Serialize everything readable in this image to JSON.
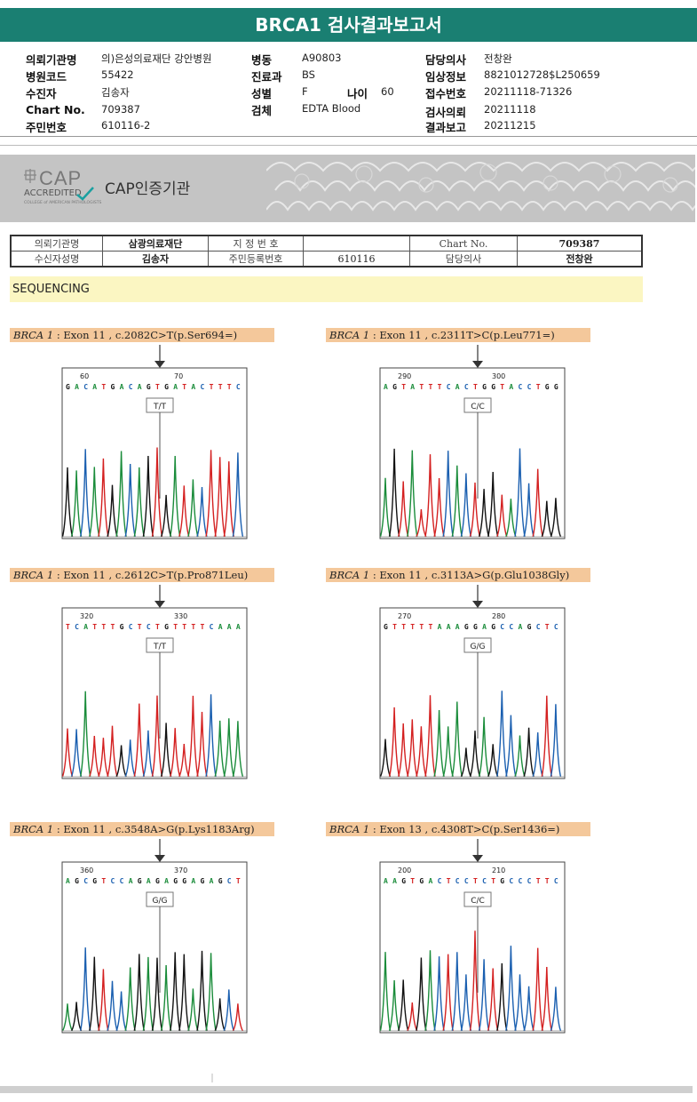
{
  "title": "BRCA1 검사결과보고서",
  "header": {
    "col1": [
      {
        "label": "의뢰기관명",
        "value": "의)은성의료재단 강안병원"
      },
      {
        "label": "병원코드",
        "value": "55422"
      },
      {
        "label": "수진자",
        "value": "김송자"
      },
      {
        "label": "Chart No.",
        "value": "709387"
      },
      {
        "label": "주민번호",
        "value": "610116-2"
      }
    ],
    "col2": [
      {
        "label": "병동",
        "value": "A90803"
      },
      {
        "label": "진료과",
        "value": "BS"
      },
      {
        "label": "성별",
        "value": "F"
      },
      {
        "label": "검체",
        "value": "EDTA Blood"
      }
    ],
    "age": {
      "label": "나이",
      "value": "60"
    },
    "col3": [
      {
        "label": "담당의사",
        "value": "전창완"
      },
      {
        "label": "임상정보",
        "value": "8821012728$L250659"
      },
      {
        "label": "접수번호",
        "value": "20211118-71326"
      },
      {
        "label": "검사의뢰",
        "value": "20211118"
      },
      {
        "label": "결과보고",
        "value": "20211215"
      }
    ]
  },
  "cap": {
    "logo": "CAP",
    "accredited": "ACCREDITED",
    "college": "COLLEGE of AMERICAN PATHOLOGISTS",
    "label": "CAP인증기관"
  },
  "info_table": {
    "r1": [
      "의뢰기관명",
      "삼광의료재단",
      "지 정 번 호",
      "",
      "Chart No.",
      "709387"
    ],
    "r2": [
      "수신자성명",
      "김송자",
      "주민등록번호",
      "610116",
      "담당의사",
      "전창완"
    ]
  },
  "section": "SEQUENCING",
  "variants": [
    {
      "gene": "BRCA 1",
      "desc": " : Exon 11 , c.2082C>T(p.Ser694=)",
      "pos_a": "60",
      "pos_b": "70",
      "seq": "G A C A T G A C A G T G A T A C T T T C",
      "call": "T/T"
    },
    {
      "gene": "BRCA 1",
      "desc": " : Exon 11 , c.2311T>C(p.Leu771=)",
      "pos_a": "290",
      "pos_b": "300",
      "seq": "A G T A T T T C A C T G G T A C C T G G",
      "call": "C/C"
    },
    {
      "gene": "BRCA 1",
      "desc": " : Exon 11 , c.2612C>T(p.Pro871Leu)",
      "pos_a": "320",
      "pos_b": "330",
      "seq": "T C A T T T G C T C T G T T T T C A A A",
      "call": "T/T"
    },
    {
      "gene": "BRCA 1",
      "desc": " : Exon 11 , c.3113A>G(p.Glu1038Gly)",
      "pos_a": "270",
      "pos_b": "280",
      "seq": "G T T T T T A A A G G A G C C A G C T C",
      "call": "G/G"
    },
    {
      "gene": "BRCA 1",
      "desc": " : Exon 11 , c.3548A>G(p.Lys1183Arg)",
      "pos_a": "360",
      "pos_b": "370",
      "seq": "A G C G T C C A G A G A G G A G A G C T",
      "call": "G/G"
    },
    {
      "gene": "BRCA 1",
      "desc": " : Exon 13 , c.4308T>C(p.Ser1436=)",
      "pos_a": "200",
      "pos_b": "210",
      "seq": "A A G T G A C T C C T C T G C C C T T C",
      "call": "C/C"
    }
  ]
}
